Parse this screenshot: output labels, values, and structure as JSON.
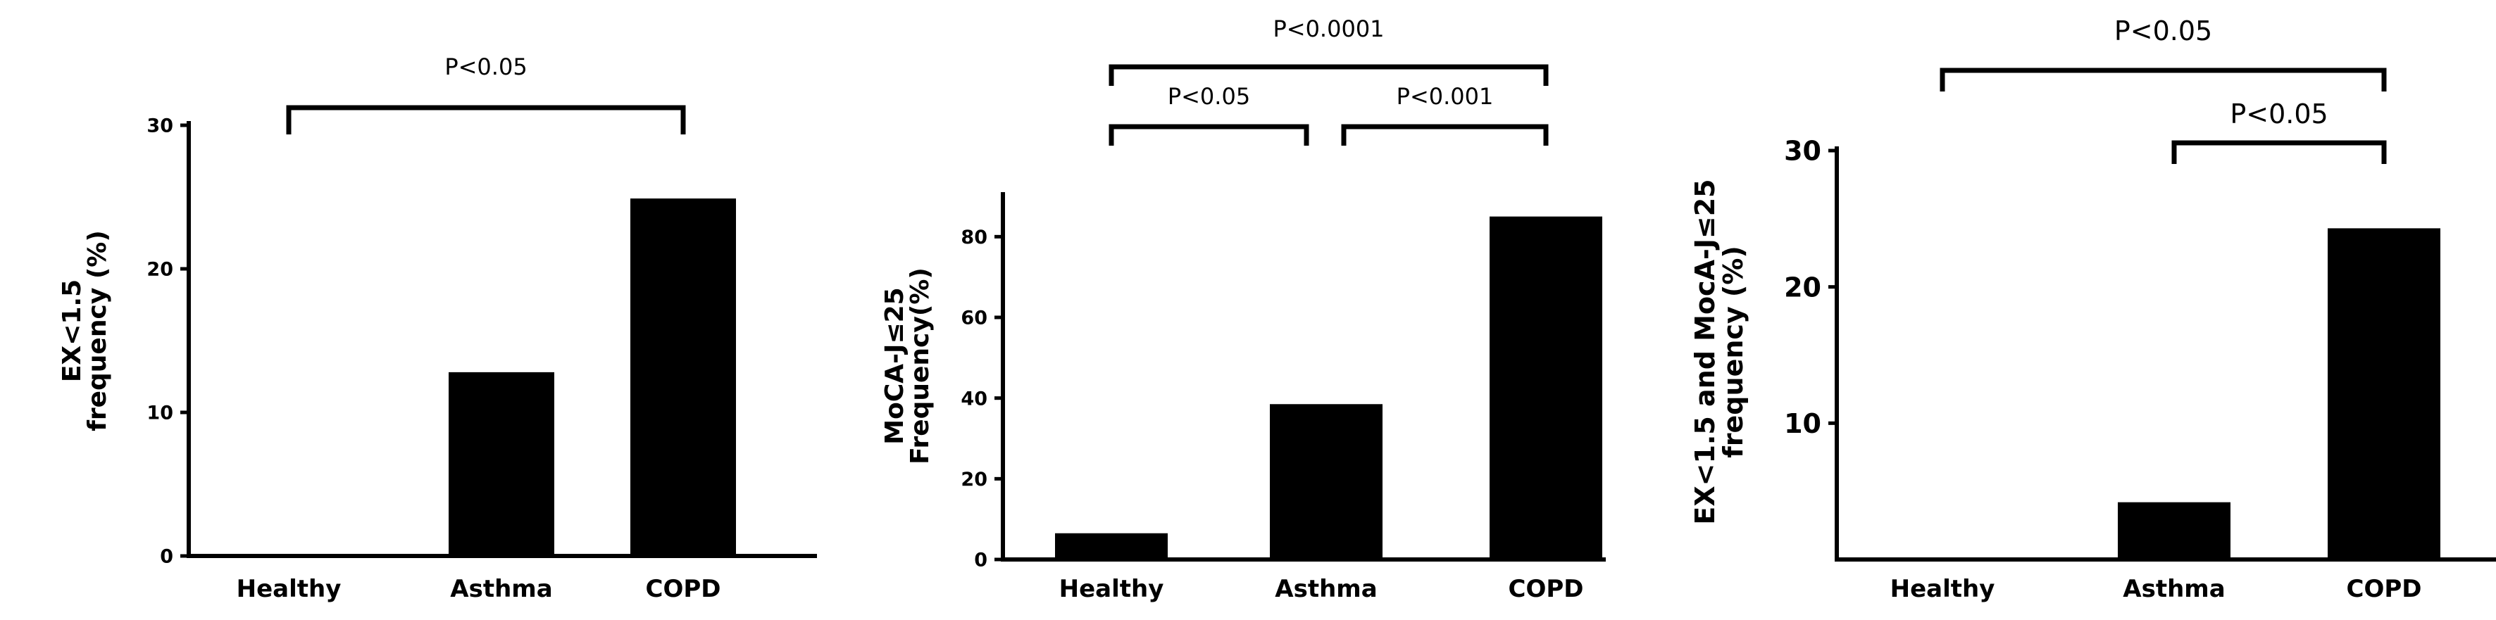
{
  "chart_data": [
    {
      "type": "bar",
      "categories": [
        "Healthy",
        "Asthma",
        "COPD"
      ],
      "values": [
        0,
        12.8,
        24.9
      ],
      "title": "",
      "xlabel": "",
      "ylabel": [
        "EX<1.5",
        "frequency (%)"
      ],
      "ylim": [
        0,
        30
      ],
      "yticks": [
        0,
        10,
        20,
        30
      ],
      "significance": [
        {
          "from": 0,
          "to": 2,
          "label": "P<0.05"
        }
      ]
    },
    {
      "type": "bar",
      "categories": [
        "Healthy",
        "Asthma",
        "COPD"
      ],
      "values": [
        6.5,
        38.5,
        85
      ],
      "title": "",
      "xlabel": "",
      "ylabel": [
        "MoCA-J≤25",
        "Frequency(%)"
      ],
      "ylim": [
        0,
        90
      ],
      "yticks": [
        0,
        20,
        40,
        60,
        80
      ],
      "significance": [
        {
          "from": 0,
          "to": 2,
          "label": "P<0.0001"
        },
        {
          "from": 0,
          "to": 1,
          "label": "P<0.05"
        },
        {
          "from": 1,
          "to": 2,
          "label": "P<0.001"
        }
      ]
    },
    {
      "type": "bar",
      "categories": [
        "Healthy",
        "Asthma",
        "COPD"
      ],
      "values": [
        0,
        4.2,
        24.3
      ],
      "title": "",
      "xlabel": "",
      "ylabel": [
        "EX<1.5 and MocA-J≤25",
        "frequency (%)"
      ],
      "ylim": [
        0,
        30
      ],
      "yticks": [
        10,
        20,
        30
      ],
      "significance": [
        {
          "from": 0,
          "to": 2,
          "label": "P<0.05"
        },
        {
          "from": 1,
          "to": 2,
          "label": "P<0.05"
        }
      ]
    }
  ]
}
